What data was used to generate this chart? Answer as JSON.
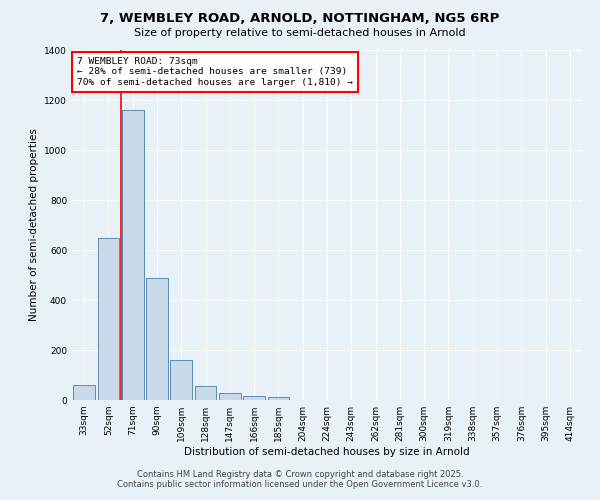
{
  "title_line1": "7, WEMBLEY ROAD, ARNOLD, NOTTINGHAM, NG5 6RP",
  "title_line2": "Size of property relative to semi-detached houses in Arnold",
  "xlabel": "Distribution of semi-detached houses by size in Arnold",
  "ylabel": "Number of semi-detached properties",
  "categories": [
    "33sqm",
    "52sqm",
    "71sqm",
    "90sqm",
    "109sqm",
    "128sqm",
    "147sqm",
    "166sqm",
    "185sqm",
    "204sqm",
    "224sqm",
    "243sqm",
    "262sqm",
    "281sqm",
    "300sqm",
    "319sqm",
    "338sqm",
    "357sqm",
    "376sqm",
    "395sqm",
    "414sqm"
  ],
  "values": [
    60,
    650,
    1160,
    490,
    160,
    55,
    28,
    18,
    14,
    0,
    0,
    0,
    0,
    0,
    0,
    0,
    0,
    0,
    0,
    0,
    0
  ],
  "bar_color": "#c9d9e8",
  "bar_edge_color": "#5b8db8",
  "background_color": "#e8f0f8",
  "grid_color": "#ffffff",
  "annotation_line1": "7 WEMBLEY ROAD: 73sqm",
  "annotation_line2": "← 28% of semi-detached houses are smaller (739)",
  "annotation_line3": "70% of semi-detached houses are larger (1,810) →",
  "red_line_bin": 2,
  "ylim": [
    0,
    1400
  ],
  "yticks": [
    0,
    200,
    400,
    600,
    800,
    1000,
    1200,
    1400
  ],
  "footer_line1": "Contains HM Land Registry data © Crown copyright and database right 2025.",
  "footer_line2": "Contains public sector information licensed under the Open Government Licence v3.0."
}
